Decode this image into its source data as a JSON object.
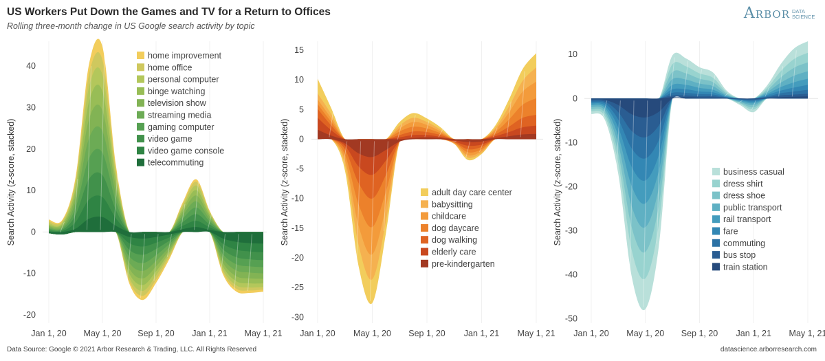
{
  "header": {
    "title": "US Workers Put Down the Games and TV for a Return to Offices",
    "subtitle": "Rolling three-month change in US Google search activity by topic",
    "logo_main": "Arbor",
    "logo_sub": "DATA SCIENCE"
  },
  "footer": {
    "source": "Data Source: Google © 2021 Arbor Research & Trading, LLC. All Rights Reserved",
    "site": "datascience.arborresearch.com"
  },
  "chart_data": [
    {
      "type": "area",
      "subtype": "stacked streamgraph",
      "title": "",
      "ylabel": "Search Activity (z-score, stacked)",
      "xlabel": "",
      "x_tick_labels": [
        "Jan 1, 20",
        "May 1, 20",
        "Sep 1, 20",
        "Jan 1, 21",
        "May 1, 21"
      ],
      "y_ticks": [
        40,
        30,
        20,
        10,
        0,
        -10,
        -20
      ],
      "ylim": [
        -22,
        46
      ],
      "x": [
        "Jan 20",
        "Feb 20",
        "Mar 20",
        "Apr 20",
        "May 20",
        "Jun 20",
        "Jul 20",
        "Aug 20",
        "Sep 20",
        "Oct 20",
        "Nov 20",
        "Dec 20",
        "Jan 21",
        "Feb 21",
        "Mar 21",
        "Apr 21",
        "May 21"
      ],
      "legend_position": "top-right",
      "series": [
        {
          "name": "home improvement",
          "color": "#f2cd5c",
          "values": [
            0.4,
            0.3,
            0.8,
            2.5,
            3.2,
            1.0,
            -0.6,
            -1.0,
            -0.8,
            -0.5,
            0.4,
            0.6,
            0.2,
            -0.5,
            -0.7,
            -0.6,
            -0.5
          ]
        },
        {
          "name": "home office",
          "color": "#cfc85e",
          "values": [
            0.5,
            0.4,
            1.0,
            3.0,
            3.6,
            1.2,
            -0.8,
            -1.2,
            -1.0,
            -0.6,
            0.6,
            0.9,
            0.3,
            -0.6,
            -0.8,
            -0.7,
            -0.6
          ]
        },
        {
          "name": "personal computer",
          "color": "#b3c75b",
          "values": [
            0.4,
            0.3,
            1.2,
            3.6,
            4.0,
            1.4,
            -1.0,
            -1.4,
            -1.0,
            -0.5,
            0.6,
            1.1,
            0.4,
            -0.8,
            -1.0,
            -1.0,
            -0.9
          ]
        },
        {
          "name": "binge watching",
          "color": "#98bd56",
          "values": [
            0.3,
            0.4,
            1.4,
            4.2,
            4.6,
            1.6,
            -1.2,
            -1.6,
            -1.2,
            -0.6,
            0.7,
            1.3,
            0.5,
            -0.9,
            -1.2,
            -1.2,
            -1.1
          ]
        },
        {
          "name": "television show",
          "color": "#82b354",
          "values": [
            0.3,
            0.4,
            1.5,
            4.6,
            5.0,
            1.8,
            -1.4,
            -1.8,
            -1.3,
            -0.7,
            0.8,
            1.4,
            0.6,
            -1.0,
            -1.4,
            -1.4,
            -1.3
          ]
        },
        {
          "name": "streaming media",
          "color": "#6cab55",
          "values": [
            0.3,
            0.3,
            1.6,
            4.8,
            5.2,
            1.9,
            -1.5,
            -1.9,
            -1.4,
            -0.7,
            0.8,
            1.5,
            0.6,
            -1.1,
            -1.5,
            -1.5,
            -1.5
          ]
        },
        {
          "name": "gaming computer",
          "color": "#56a052",
          "values": [
            0.3,
            0.3,
            1.7,
            5.0,
            5.4,
            2.0,
            -1.6,
            -2.0,
            -1.5,
            -0.8,
            0.9,
            1.6,
            0.7,
            -1.2,
            -1.7,
            -1.7,
            -1.7
          ]
        },
        {
          "name": "video game",
          "color": "#41914b",
          "values": [
            0.3,
            0.3,
            1.7,
            5.0,
            5.3,
            2.0,
            -1.6,
            -2.0,
            -1.5,
            -0.8,
            0.9,
            1.6,
            0.7,
            -1.3,
            -1.8,
            -1.9,
            -1.9
          ]
        },
        {
          "name": "video game console",
          "color": "#2f8444",
          "values": [
            0.2,
            0.2,
            1.6,
            4.6,
            4.8,
            1.8,
            -1.5,
            -1.9,
            -1.4,
            -0.7,
            0.8,
            1.5,
            0.6,
            -1.3,
            -1.9,
            -2.0,
            -2.1
          ]
        },
        {
          "name": "telecommuting",
          "color": "#1f6e3b",
          "values": [
            -0.3,
            -0.6,
            0.8,
            3.2,
            3.6,
            1.5,
            -1.2,
            -1.6,
            -1.2,
            -0.6,
            0.7,
            1.2,
            0.5,
            -1.6,
            -2.4,
            -2.7,
            -2.8
          ]
        }
      ]
    },
    {
      "type": "area",
      "subtype": "stacked streamgraph",
      "title": "",
      "ylabel": "Search Activity (z-score, stacked)",
      "xlabel": "",
      "x_tick_labels": [
        "Jan 1, 20",
        "May 1, 20",
        "Sep 1, 20",
        "Jan 1, 21",
        "May 1, 21"
      ],
      "y_ticks": [
        15,
        10,
        5,
        0,
        -5,
        -10,
        -15,
        -20,
        -25,
        -30
      ],
      "ylim": [
        -31,
        16.5
      ],
      "x": [
        "Jan 20",
        "Feb 20",
        "Mar 20",
        "Apr 20",
        "May 20",
        "Jun 20",
        "Jul 20",
        "Aug 20",
        "Sep 20",
        "Oct 20",
        "Nov 20",
        "Dec 20",
        "Jan 21",
        "Feb 21",
        "Mar 21",
        "Apr 21",
        "May 21"
      ],
      "legend_position": "bottom-right",
      "series": [
        {
          "name": "adult day care center",
          "color": "#f2cd5c",
          "values": [
            2.5,
            1.0,
            -1.0,
            -3.6,
            -4.0,
            -2.0,
            0.6,
            0.8,
            0.6,
            0.4,
            0.0,
            -0.4,
            -0.2,
            0.4,
            1.2,
            2.0,
            2.4
          ]
        },
        {
          "name": "babysitting",
          "color": "#f5b150",
          "values": [
            1.0,
            0.7,
            -0.8,
            -3.2,
            -4.2,
            -2.4,
            0.5,
            0.7,
            0.5,
            0.3,
            -0.1,
            -0.4,
            -0.3,
            0.3,
            1.0,
            1.8,
            2.4
          ]
        },
        {
          "name": "childcare",
          "color": "#f39b3b",
          "values": [
            0.8,
            0.6,
            -0.9,
            -3.6,
            -4.6,
            -2.6,
            0.5,
            0.8,
            0.6,
            0.3,
            -0.1,
            -0.5,
            -0.3,
            0.4,
            1.2,
            2.2,
            2.8
          ]
        },
        {
          "name": "dog daycare",
          "color": "#ec812b",
          "values": [
            0.8,
            0.6,
            -0.9,
            -3.6,
            -4.8,
            -2.8,
            0.6,
            0.8,
            0.6,
            0.3,
            -0.1,
            -0.5,
            -0.4,
            0.4,
            1.2,
            2.2,
            2.8
          ]
        },
        {
          "name": "dog walking",
          "color": "#df6322",
          "values": [
            1.5,
            0.8,
            -0.6,
            -2.8,
            -4.0,
            -2.4,
            0.4,
            0.6,
            0.5,
            0.3,
            -0.1,
            -0.6,
            -0.4,
            0.3,
            0.9,
            1.6,
            1.8
          ]
        },
        {
          "name": "elderly care",
          "color": "#c9481f",
          "values": [
            2.0,
            0.9,
            -0.4,
            -2.2,
            -3.0,
            -1.8,
            0.3,
            0.5,
            0.4,
            0.2,
            -0.2,
            -0.6,
            -0.5,
            0.3,
            0.7,
            1.2,
            1.4
          ]
        },
        {
          "name": "pre-kindergarten",
          "color": "#a23922",
          "values": [
            1.6,
            0.6,
            -0.7,
            -2.4,
            -3.0,
            -1.8,
            -0.4,
            0.2,
            0.3,
            0.2,
            -0.2,
            -0.5,
            -0.4,
            0.2,
            0.5,
            0.8,
            0.9
          ]
        }
      ]
    },
    {
      "type": "area",
      "subtype": "stacked streamgraph",
      "title": "",
      "ylabel": "Search Activity (z-score, stacked)",
      "xlabel": "",
      "x_tick_labels": [
        "Jan 1, 20",
        "May 1, 20",
        "Sep 1, 20",
        "Jan 1, 21",
        "May 1, 21"
      ],
      "y_ticks": [
        10,
        0,
        -10,
        -20,
        -30,
        -40,
        -50
      ],
      "ylim": [
        -51,
        13
      ],
      "x": [
        "Jan 20",
        "Feb 20",
        "Mar 20",
        "Apr 20",
        "May 20",
        "Jun 20",
        "Jul 20",
        "Aug 20",
        "Sep 20",
        "Oct 20",
        "Nov 20",
        "Dec 20",
        "Jan 21",
        "Feb 21",
        "Mar 21",
        "Apr 21",
        "May 21"
      ],
      "legend_position": "bottom-right",
      "series": [
        {
          "name": "business casual",
          "color": "#b9e0da",
          "values": [
            -0.6,
            -0.8,
            -2.5,
            -6.0,
            -7.0,
            -5.0,
            2.0,
            1.8,
            1.4,
            1.2,
            0.4,
            -0.3,
            -0.6,
            0.6,
            1.6,
            2.4,
            2.6
          ]
        },
        {
          "name": "dress shirt",
          "color": "#98d3cf",
          "values": [
            -0.5,
            -0.7,
            -2.2,
            -5.2,
            -6.0,
            -4.2,
            1.8,
            1.6,
            1.2,
            1.0,
            0.3,
            -0.2,
            -0.5,
            0.5,
            1.4,
            2.0,
            2.2
          ]
        },
        {
          "name": "dress shoe",
          "color": "#7cc2c8",
          "values": [
            -0.5,
            -0.6,
            -2.0,
            -4.8,
            -5.6,
            -4.0,
            1.6,
            1.4,
            1.1,
            0.9,
            0.3,
            -0.2,
            -0.5,
            0.4,
            1.2,
            1.8,
            2.0
          ]
        },
        {
          "name": "public transport",
          "color": "#5fb0c3",
          "values": [
            -0.4,
            -0.6,
            -2.0,
            -4.6,
            -5.4,
            -3.8,
            1.3,
            1.2,
            1.0,
            0.8,
            0.2,
            -0.2,
            -0.4,
            0.4,
            1.0,
            1.5,
            1.7
          ]
        },
        {
          "name": "rail transport",
          "color": "#449cbd",
          "values": [
            -0.4,
            -0.5,
            -1.9,
            -4.4,
            -5.2,
            -3.6,
            1.0,
            1.0,
            0.8,
            0.6,
            0.2,
            -0.2,
            -0.3,
            0.3,
            0.8,
            1.2,
            1.4
          ]
        },
        {
          "name": "fare",
          "color": "#3387b4",
          "values": [
            -0.3,
            -0.5,
            -1.8,
            -4.2,
            -5.0,
            -3.4,
            0.8,
            0.8,
            0.6,
            0.5,
            0.1,
            -0.1,
            -0.3,
            0.3,
            0.6,
            0.9,
            1.1
          ]
        },
        {
          "name": "commuting",
          "color": "#2c72a5",
          "values": [
            -0.3,
            -0.4,
            -1.7,
            -4.0,
            -4.8,
            -3.3,
            0.6,
            0.6,
            0.5,
            0.4,
            0.1,
            -0.1,
            -0.2,
            0.2,
            0.5,
            0.7,
            0.9
          ]
        },
        {
          "name": "bus stop",
          "color": "#2a5d92",
          "values": [
            -0.3,
            -0.4,
            -1.6,
            -3.8,
            -4.5,
            -3.1,
            0.4,
            0.4,
            0.3,
            0.3,
            0.1,
            -0.1,
            -0.2,
            0.2,
            0.4,
            0.5,
            0.6
          ]
        },
        {
          "name": "train station",
          "color": "#264a7c",
          "values": [
            -0.2,
            -0.3,
            -1.5,
            -3.6,
            -4.3,
            -3.0,
            0.3,
            0.3,
            0.2,
            0.2,
            0.1,
            -0.1,
            -0.1,
            0.1,
            0.3,
            0.4,
            0.5
          ]
        }
      ]
    }
  ]
}
